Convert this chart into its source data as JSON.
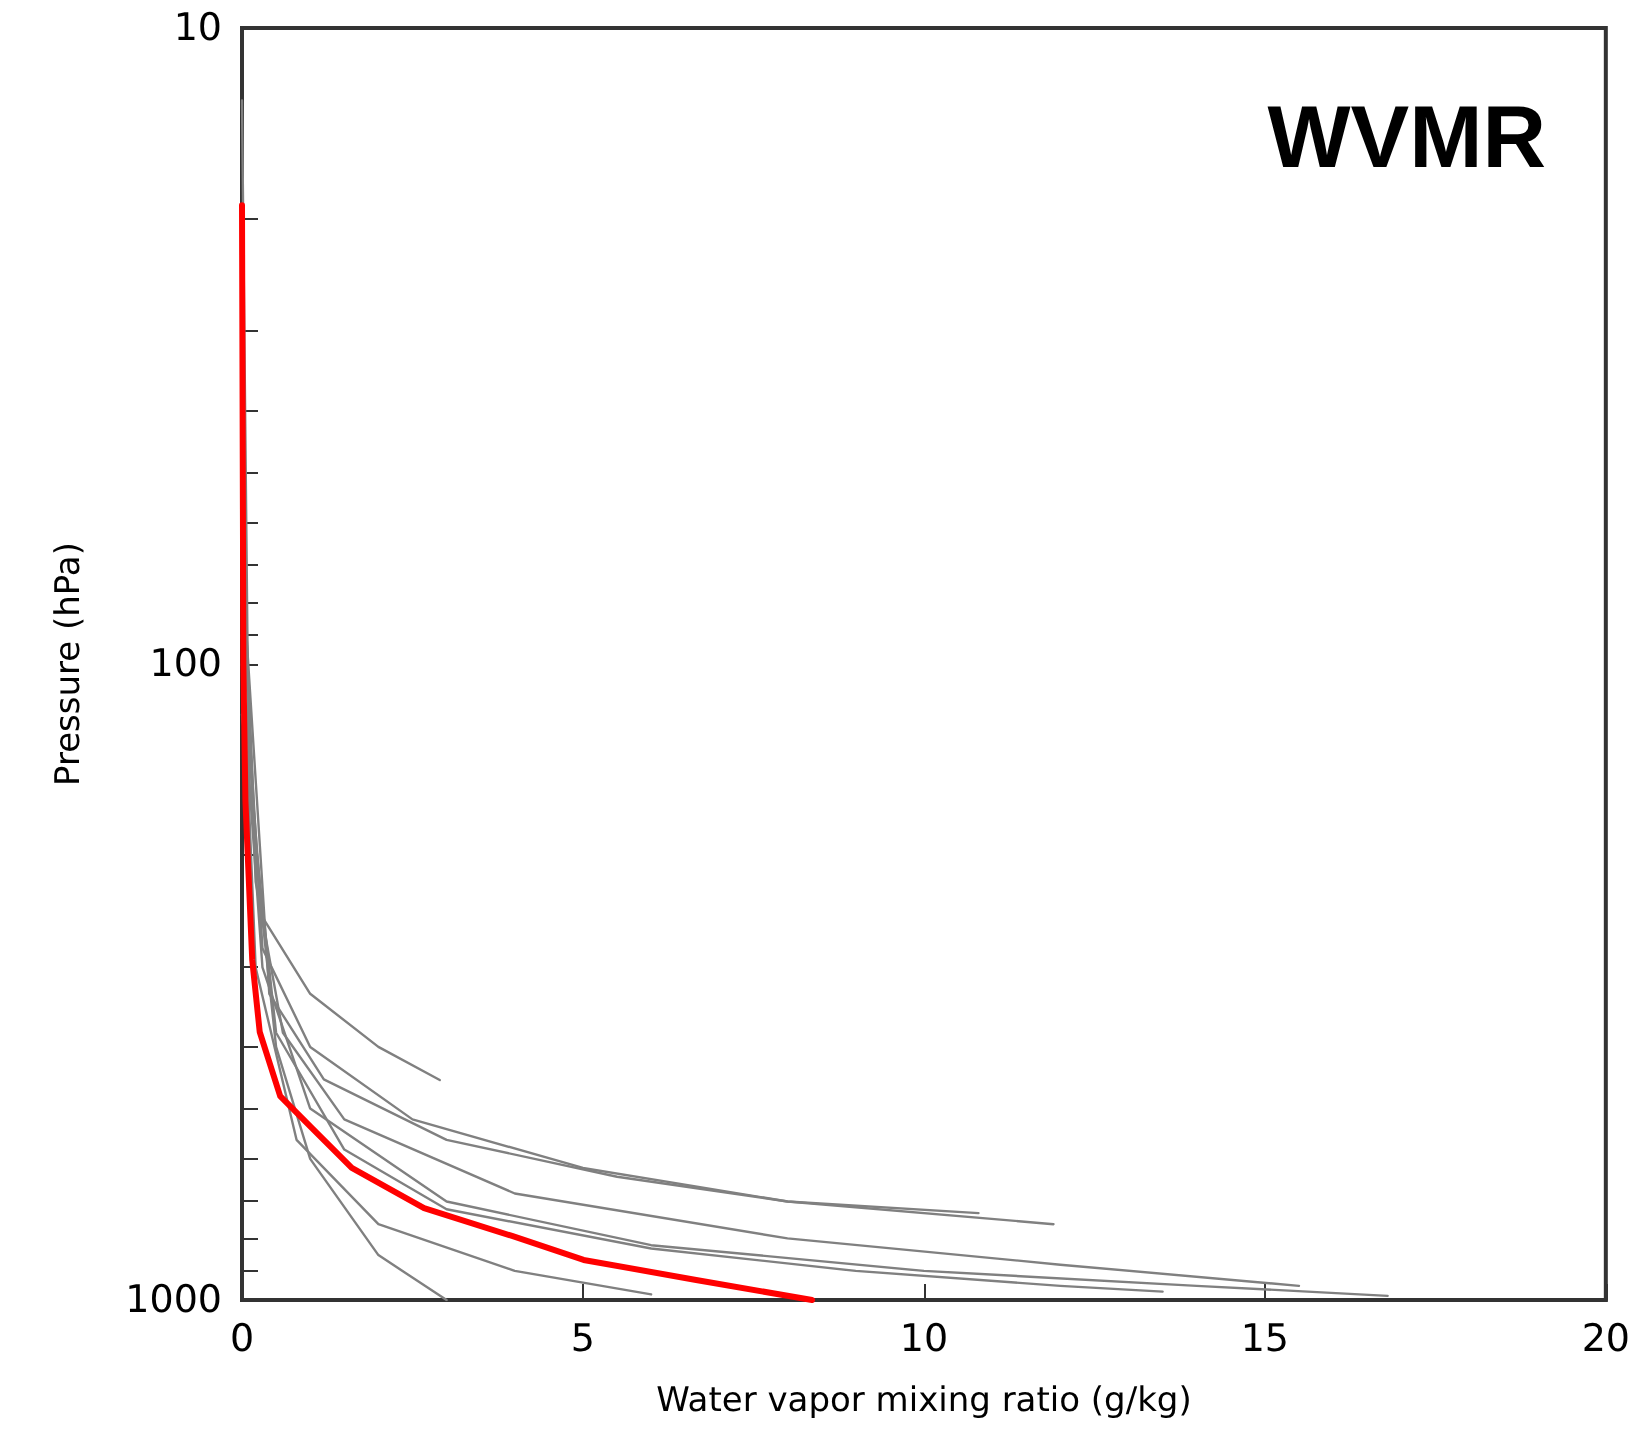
{
  "chart_data": {
    "type": "line",
    "title": "WVMR",
    "xlabel": "Water vapor mixing ratio (g/kg)",
    "ylabel": "Pressure (hPa)",
    "log": "y",
    "xlim": [
      0,
      20
    ],
    "ylim": [
      1000,
      10
    ],
    "xticks": [
      0,
      5,
      10,
      15,
      20
    ],
    "yticks": [
      10,
      {
        "value": 20,
        "label": null
      },
      {
        "value": 30,
        "label": null
      },
      {
        "value": 40,
        "label": null
      },
      {
        "value": 50,
        "label": null
      },
      {
        "value": 60,
        "label": null
      },
      {
        "value": 70,
        "label": null
      },
      {
        "value": 80,
        "label": null
      },
      {
        "value": 90,
        "label": null
      },
      100,
      {
        "value": 200,
        "label": null
      },
      {
        "value": 300,
        "label": null
      },
      {
        "value": 400,
        "label": null
      },
      {
        "value": 500,
        "label": null
      },
      {
        "value": 600,
        "label": null
      },
      {
        "value": 700,
        "label": null
      },
      {
        "value": 800,
        "label": null
      },
      {
        "value": 900,
        "label": null
      },
      1000
    ],
    "marker": "none",
    "line_style": "solid",
    "series": [
      {
        "color": "#808080",
        "x": [
          0,
          0.1,
          0.3,
          1,
          3,
          6,
          10,
          14,
          16.8
        ],
        "values": [
          13,
          150,
          300,
          500,
          700,
          820,
          900,
          950,
          985
        ]
      },
      {
        "color": "#808080",
        "x": [
          0,
          0.2,
          0.6,
          1.5,
          4,
          8,
          12,
          15.5
        ],
        "values": [
          60,
          220,
          380,
          520,
          680,
          800,
          880,
          950
        ]
      },
      {
        "color": "#808080",
        "x": [
          0,
          0.2,
          0.5,
          1,
          2,
          3
        ],
        "values": [
          60,
          200,
          400,
          600,
          850,
          1000
        ]
      },
      {
        "color": "#808080",
        "x": [
          0,
          0.3,
          1,
          2.5,
          5,
          8,
          11.9
        ],
        "values": [
          80,
          280,
          400,
          520,
          620,
          700,
          760
        ]
      },
      {
        "color": "#808080",
        "x": [
          0,
          0.3,
          1,
          2,
          2.9
        ],
        "values": [
          100,
          250,
          330,
          400,
          451
        ]
      },
      {
        "color": "#808080",
        "x": [
          0,
          0.5,
          1.5,
          3,
          6,
          9,
          12,
          13.5
        ],
        "values": [
          120,
          380,
          580,
          720,
          830,
          900,
          950,
          970
        ]
      },
      {
        "color": "#808080",
        "x": [
          0,
          0.2,
          0.8,
          2,
          4,
          6
        ],
        "values": [
          90,
          300,
          560,
          760,
          900,
          980
        ]
      },
      {
        "color": "#808080",
        "x": [
          0,
          0.4,
          1.2,
          3,
          5.5,
          8,
          10.8
        ],
        "values": [
          70,
          330,
          450,
          560,
          640,
          700,
          730
        ]
      },
      {
        "color": "#ff0000",
        "x": [
          0,
          0.02,
          0.05,
          0.15,
          0.26,
          0.56,
          1.03,
          1.61,
          2.67,
          3.96,
          5.01,
          6.66,
          8.36
        ],
        "values": [
          19,
          100,
          164,
          292,
          379,
          478,
          537,
          620,
          717,
          793,
          865,
          930,
          1000
        ]
      }
    ]
  }
}
